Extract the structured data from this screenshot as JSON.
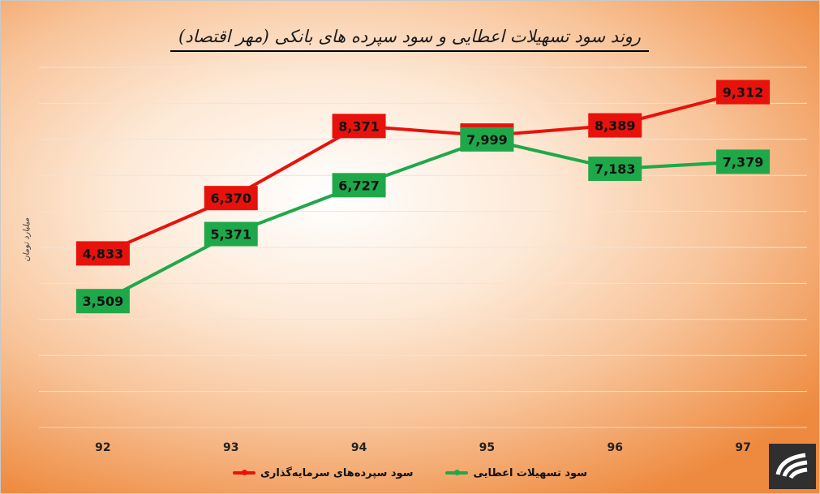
{
  "chart_data": {
    "type": "line",
    "title": "روند سود تسهیلات اعطایی و سود سپرده های بانکی (مهر اقتصاد)",
    "ylabel": "میلیارد تومان",
    "categories": [
      "92",
      "93",
      "94",
      "95",
      "96",
      "97"
    ],
    "ylim": [
      0,
      10000
    ],
    "grid": true,
    "legend_position": "bottom",
    "series": [
      {
        "name": "سود سپرده‌های سرمایه‌گذاری",
        "color": "#e8120c",
        "values": [
          4833,
          6370,
          8371,
          8106,
          8389,
          9312
        ],
        "labels": [
          "4,833",
          "6,370",
          "8,371",
          "8,106",
          "8,389",
          "9,312"
        ]
      },
      {
        "name": "سود تسهیلات اعطایی",
        "color": "#1fa84a",
        "values": [
          3509,
          5371,
          6727,
          7999,
          7183,
          7379
        ],
        "labels": [
          "3,509",
          "5,371",
          "6,727",
          "7,999",
          "7,183",
          "7,379"
        ]
      }
    ]
  },
  "logo": {
    "icon": "bank-logo-icon"
  }
}
